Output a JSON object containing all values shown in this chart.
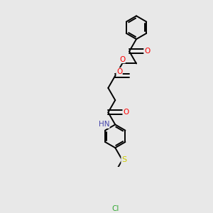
{
  "background_color": "#e8e8e8",
  "bond_color": "#000000",
  "atom_colors": {
    "O": "#ff0000",
    "N": "#4444aa",
    "S": "#cccc00",
    "Cl": "#33aa33",
    "H": "#888888",
    "C": "#000000"
  },
  "figsize": [
    3.0,
    3.0
  ],
  "dpi": 100,
  "bond_lw": 1.4,
  "font_size": 7.5
}
